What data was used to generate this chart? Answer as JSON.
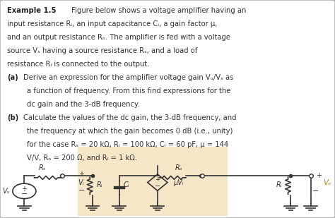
{
  "bg_color": "#f5f5f5",
  "box_color": "#ffffff",
  "highlight_color": "#f5e6c8",
  "text_color": "#333333",
  "circuit_color": "#333333",
  "title_bold": "Example 1.5",
  "title_normal": " Figure below shows a voltage amplifier having an",
  "line2": "input resistance Rᵢ, an input capacitance Cᵢ, a gain factor μ,",
  "line3": "and an output resistance Rₒ. The amplifier is fed with a voltage",
  "line4": "source Vₛ having a source resistance Rₛ, and a load of",
  "line5": "resistance Rₗ is connected to the output.",
  "line_a_bold": "(a)",
  "line_a_text": " Derive an expression for the amplifier voltage gain Vₒ/Vₛ as",
  "line_a2": "a function of frequency. From this find expressions for the",
  "line_a3": "dc gain and the 3-dB frequency.",
  "line_b_bold": "(b)",
  "line_b_text": " Calculate the values of the dc gain, the 3-dB frequency, and",
  "line_b2": "the frequency at which the gain becomes 0 dB (i.e., unity)",
  "line_b3": "for the case Rₛ = 20 kΩ, Rᵢ = 100 kΩ, Cᵢ = 60 pF, μ = 144",
  "line_b4": "V/V, Rₒ = 200 Ω, and Rₗ = 1 kΩ."
}
